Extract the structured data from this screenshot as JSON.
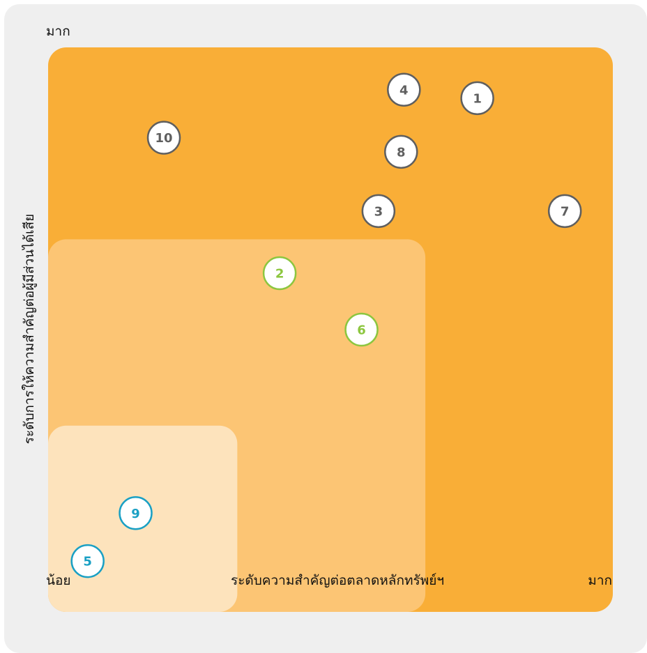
{
  "chart_data": {
    "type": "scatter",
    "title": "",
    "xlabel": "ระดับความสำคัญต่อตลาดหลักทรัพย์ฯ",
    "ylabel": "ระดับการให้ความสำคัญต่อผู้มีส่วนได้เสีย",
    "x_low_label": "น้อย",
    "x_high_label": "มาก",
    "y_high_label": "มาก",
    "xlim": [
      0,
      100
    ],
    "ylim": [
      0,
      100
    ],
    "grid": false,
    "zones": [
      {
        "name": "low",
        "x_max": 33.5,
        "y_max": 33.0,
        "color": "#fde3bc"
      },
      {
        "name": "medium",
        "x_max": 66.8,
        "y_max": 66.0,
        "color": "#fcc574"
      },
      {
        "name": "high",
        "x_max": 100,
        "y_max": 100,
        "color": "#f9ae37"
      }
    ],
    "points": [
      {
        "label": "1",
        "x": 76.0,
        "y": 91.0,
        "group": "high"
      },
      {
        "label": "2",
        "x": 41.0,
        "y": 60.0,
        "group": "medium"
      },
      {
        "label": "3",
        "x": 58.5,
        "y": 71.0,
        "group": "high"
      },
      {
        "label": "4",
        "x": 63.0,
        "y": 92.5,
        "group": "high"
      },
      {
        "label": "5",
        "x": 7.0,
        "y": 9.0,
        "group": "low"
      },
      {
        "label": "6",
        "x": 55.5,
        "y": 50.0,
        "group": "medium"
      },
      {
        "label": "7",
        "x": 91.5,
        "y": 71.0,
        "group": "high"
      },
      {
        "label": "8",
        "x": 62.5,
        "y": 81.5,
        "group": "high"
      },
      {
        "label": "9",
        "x": 15.5,
        "y": 17.5,
        "group": "low"
      },
      {
        "label": "10",
        "x": 20.5,
        "y": 84.0,
        "group": "high"
      }
    ],
    "group_colors": {
      "high": "#5f5f5f",
      "medium": "#8cc63f",
      "low": "#1aa0c4"
    }
  }
}
